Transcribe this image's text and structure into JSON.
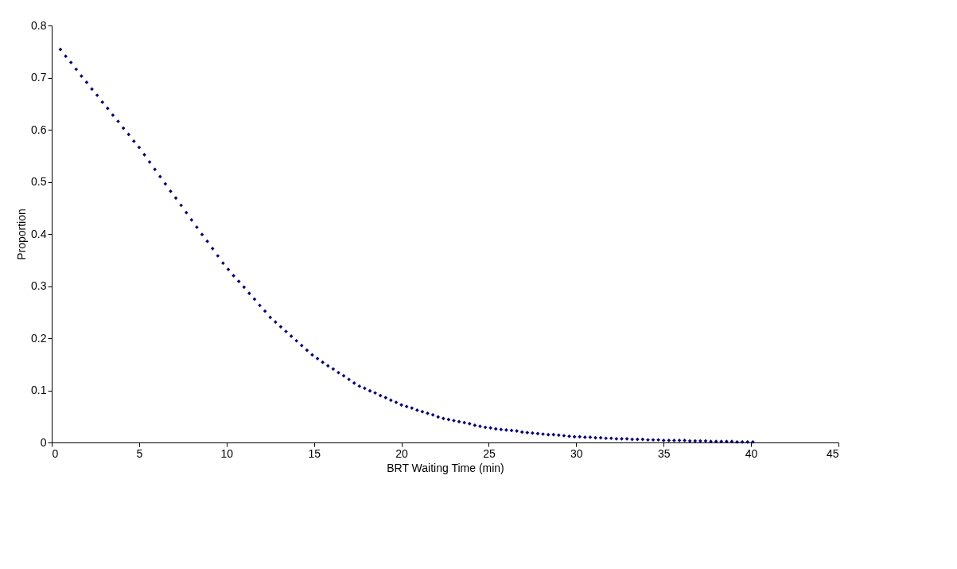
{
  "chart_data": {
    "type": "scatter",
    "xlabel": "BRT Waiting Time (min)",
    "ylabel": "Proportion",
    "x": [
      0.5,
      0.8,
      1.1,
      1.4,
      1.7,
      2.0,
      2.3,
      2.6,
      2.9,
      3.2,
      3.5,
      3.8,
      4.1,
      4.4,
      4.7,
      5.0,
      5.3,
      5.6,
      5.9,
      6.2,
      6.5,
      6.8,
      7.1,
      7.4,
      7.7,
      8.0,
      8.3,
      8.6,
      8.9,
      9.2,
      9.5,
      9.8,
      10.1,
      10.4,
      10.7,
      11.0,
      11.3,
      11.6,
      11.9,
      12.2,
      12.5,
      12.8,
      13.1,
      13.4,
      13.7,
      14.0,
      14.3,
      14.6,
      14.9,
      15.2,
      15.5,
      15.8,
      16.1,
      16.4,
      16.7,
      17.0,
      17.3,
      17.6,
      17.9,
      18.2,
      18.5,
      18.8,
      19.1,
      19.4,
      19.7,
      20.0,
      20.3,
      20.6,
      20.9,
      21.2,
      21.5,
      21.8,
      22.1,
      22.4,
      22.7,
      23.0,
      23.3,
      23.6,
      23.9,
      24.2,
      24.5,
      24.8,
      25.1,
      25.4,
      25.7,
      26.0,
      26.3,
      26.6,
      26.9,
      27.2,
      27.5,
      27.8,
      28.1,
      28.4,
      28.7,
      29.0,
      29.3,
      29.6,
      29.9,
      30.2,
      30.5,
      30.8,
      31.1,
      31.4,
      31.7,
      32.0,
      32.3,
      32.6,
      32.9,
      33.2,
      33.5,
      33.8,
      34.1,
      34.4,
      34.7,
      35.0,
      35.3,
      35.6,
      35.9,
      36.2,
      36.5,
      36.8,
      37.1,
      37.4,
      37.7,
      38.0,
      38.3,
      38.6,
      38.9,
      39.2,
      39.5,
      39.8,
      40.1
    ],
    "series": [
      {
        "color": "#000080",
        "values": [
          0.754,
          0.741,
          0.729,
          0.716,
          0.703,
          0.691,
          0.678,
          0.666,
          0.653,
          0.641,
          0.628,
          0.616,
          0.603,
          0.591,
          0.578,
          0.566,
          0.552,
          0.538,
          0.524,
          0.51,
          0.496,
          0.482,
          0.469,
          0.455,
          0.441,
          0.427,
          0.413,
          0.399,
          0.386,
          0.372,
          0.358,
          0.344,
          0.332,
          0.32,
          0.309,
          0.298,
          0.286,
          0.275,
          0.263,
          0.252,
          0.24,
          0.231,
          0.222,
          0.213,
          0.204,
          0.195,
          0.186,
          0.177,
          0.168,
          0.161,
          0.154,
          0.147,
          0.141,
          0.134,
          0.128,
          0.121,
          0.114,
          0.108,
          0.104,
          0.099,
          0.095,
          0.09,
          0.086,
          0.081,
          0.077,
          0.072,
          0.069,
          0.066,
          0.062,
          0.059,
          0.056,
          0.053,
          0.049,
          0.046,
          0.044,
          0.042,
          0.04,
          0.038,
          0.036,
          0.033,
          0.031,
          0.029,
          0.028,
          0.026,
          0.025,
          0.024,
          0.023,
          0.022,
          0.02,
          0.019,
          0.018,
          0.017,
          0.016,
          0.015,
          0.015,
          0.014,
          0.013,
          0.012,
          0.011,
          0.011,
          0.01,
          0.01,
          0.009,
          0.009,
          0.008,
          0.008,
          0.007,
          0.007,
          0.007,
          0.006,
          0.006,
          0.006,
          0.005,
          0.005,
          0.005,
          0.004,
          0.004,
          0.004,
          0.004,
          0.004,
          0.003,
          0.003,
          0.003,
          0.003,
          0.002,
          0.002,
          0.002,
          0.002,
          0.002,
          0.001,
          0.001,
          0.001,
          0.001
        ]
      }
    ],
    "xlim": [
      0,
      45
    ],
    "xticks": [
      0,
      5,
      10,
      15,
      20,
      25,
      30,
      35,
      40,
      45
    ],
    "ylim": [
      0,
      0.8
    ],
    "yticks": [
      0,
      0.1,
      0.2,
      0.3,
      0.4,
      0.5,
      0.6,
      0.7,
      0.8
    ],
    "marker": "diamond",
    "grid": false
  }
}
